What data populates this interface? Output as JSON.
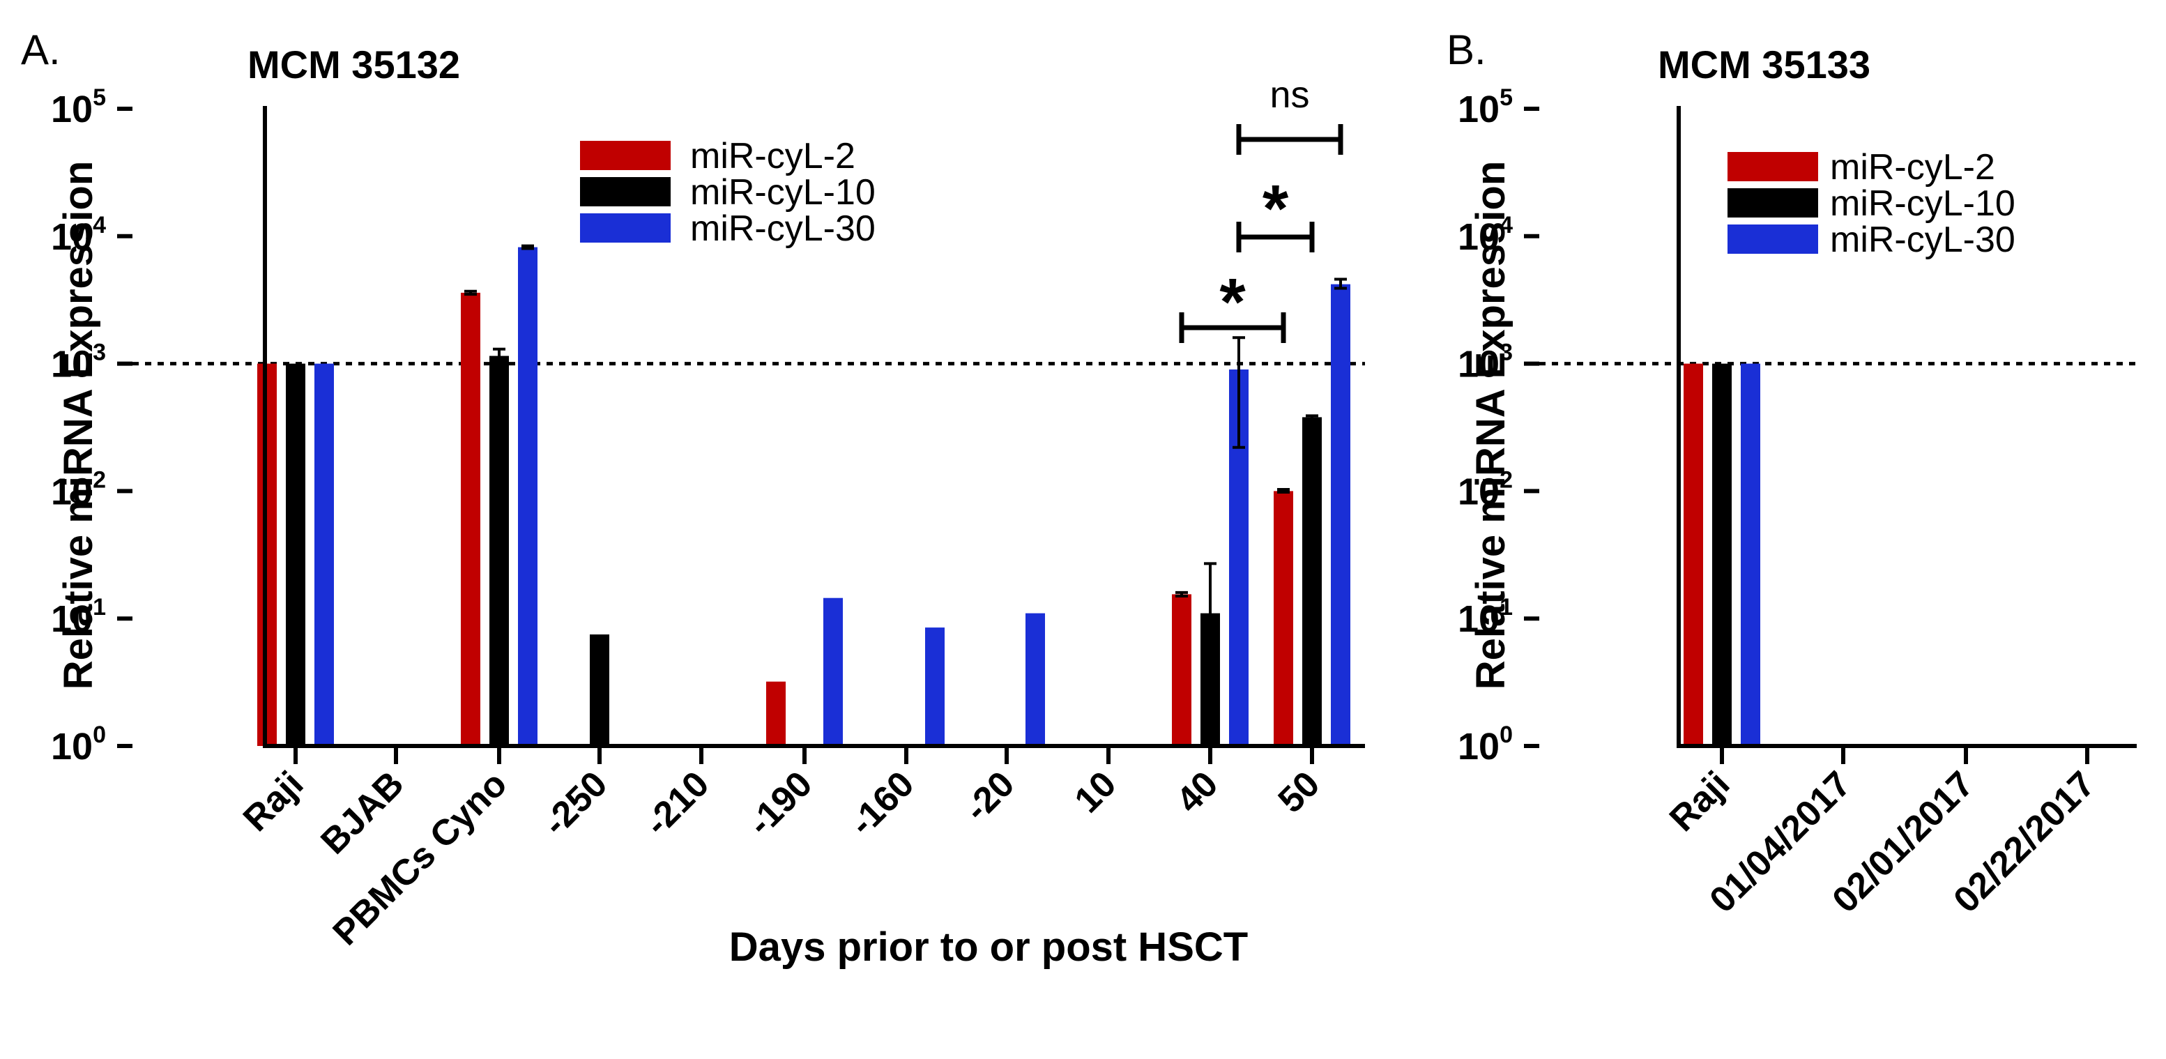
{
  "chart_data": [
    {
      "type": "bar",
      "panel_label": "A.",
      "title": "MCM 35132",
      "xlabel": "Days prior to or post HSCT",
      "ylabel": "Relative miRNA Expression",
      "yscale": "log",
      "ylim": [
        1,
        100000
      ],
      "yticks": [
        {
          "base": "10",
          "exp": "0"
        },
        {
          "base": "10",
          "exp": "1"
        },
        {
          "base": "10",
          "exp": "2"
        },
        {
          "base": "10",
          "exp": "3"
        },
        {
          "base": "10",
          "exp": "4"
        },
        {
          "base": "10",
          "exp": "5"
        }
      ],
      "reference_line": 1000,
      "categories": [
        "Raji",
        "BJAB",
        "PBMCs Cyno",
        "-250",
        "-210",
        "-190",
        "-160",
        "-20",
        "10",
        "40",
        "50"
      ],
      "legend_position": "top-center",
      "series": [
        {
          "name": "miR-cyL-2",
          "color": "#c00000",
          "values": [
            1000,
            1,
            3600,
            1,
            1,
            3.2,
            1,
            1,
            1,
            15.5,
            100
          ],
          "errors": [
            null,
            null,
            [
              3500,
              3700
            ],
            null,
            null,
            null,
            null,
            null,
            null,
            [
              15,
              16
            ],
            [
              98,
              103
            ]
          ]
        },
        {
          "name": "miR-cyL-10",
          "color": "#000000",
          "values": [
            1000,
            1,
            1150,
            7.5,
            1,
            1,
            1,
            1,
            1,
            11,
            380
          ],
          "errors": [
            null,
            null,
            [
              1000,
              1300
            ],
            null,
            null,
            null,
            null,
            null,
            null,
            [
              1,
              27
            ],
            [
              370,
              390
            ]
          ]
        },
        {
          "name": "miR-cyL-30",
          "color": "#1a2fd6",
          "values": [
            1000,
            1,
            8200,
            1,
            1,
            14.5,
            8.5,
            11,
            1,
            900,
            4200
          ],
          "errors": [
            null,
            null,
            [
              8000,
              8400
            ],
            null,
            null,
            null,
            null,
            null,
            null,
            [
              220,
              1600
            ],
            [
              3900,
              4600
            ]
          ]
        }
      ],
      "significance": [
        {
          "label": "*",
          "from": {
            "category": "40",
            "series": "miR-cyL-2"
          },
          "to": {
            "category": "50",
            "series": "miR-cyL-2"
          }
        },
        {
          "label": "*",
          "from": {
            "category": "40",
            "series": "miR-cyL-30"
          },
          "to": {
            "category": "50",
            "series": "miR-cyL-10"
          }
        },
        {
          "label": "ns",
          "from": {
            "category": "40",
            "series": "miR-cyL-30"
          },
          "to": {
            "category": "50",
            "series": "miR-cyL-30"
          }
        }
      ]
    },
    {
      "type": "bar",
      "panel_label": "B.",
      "title": "MCM 35133",
      "xlabel": "",
      "ylabel": "Relative miRNA Expression",
      "yscale": "log",
      "ylim": [
        1,
        100000
      ],
      "yticks": [
        {
          "base": "10",
          "exp": "0"
        },
        {
          "base": "10",
          "exp": "1"
        },
        {
          "base": "10",
          "exp": "2"
        },
        {
          "base": "10",
          "exp": "3"
        },
        {
          "base": "10",
          "exp": "4"
        },
        {
          "base": "10",
          "exp": "5"
        }
      ],
      "reference_line": 1000,
      "categories": [
        "Raji",
        "01/04/2017",
        "02/01/2017",
        "02/22/2017"
      ],
      "legend_position": "top-center",
      "series": [
        {
          "name": "miR-cyL-2",
          "color": "#c00000",
          "values": [
            1000,
            1.02,
            1,
            1
          ],
          "errors": [
            null,
            null,
            null,
            null
          ]
        },
        {
          "name": "miR-cyL-10",
          "color": "#000000",
          "values": [
            1000,
            1,
            1,
            1
          ],
          "errors": [
            null,
            null,
            null,
            null
          ]
        },
        {
          "name": "miR-cyL-30",
          "color": "#1a2fd6",
          "values": [
            1000,
            1,
            1,
            1
          ],
          "errors": [
            null,
            null,
            null,
            null
          ]
        }
      ],
      "significance": []
    }
  ]
}
